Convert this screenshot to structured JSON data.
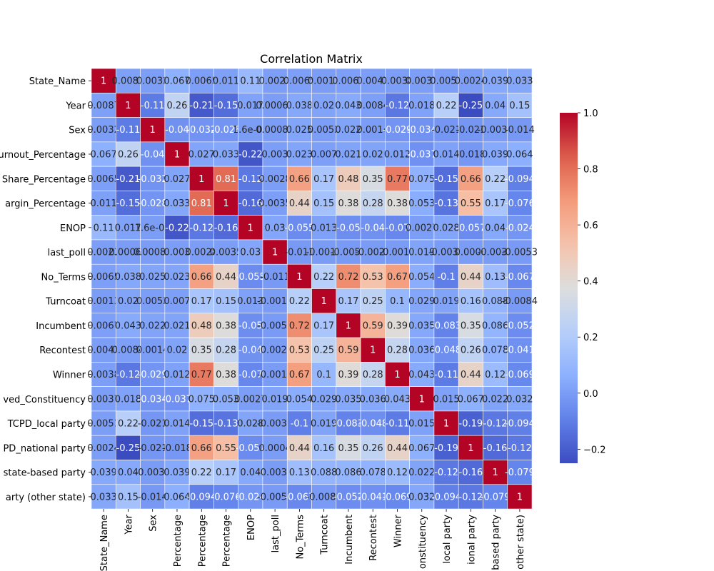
{
  "chart_data": {
    "type": "heatmap",
    "title": "Correlation Matrix",
    "row_labels": [
      "State_Name",
      "Year",
      "Sex",
      "urnout_Percentage",
      "Share_Percentage",
      "argin_Percentage",
      "ENOP",
      "last_poll",
      "No_Terms",
      "Turncoat",
      "Incumbent",
      "Recontest",
      "Winner",
      "ved_Constituency",
      "TCPD_local party",
      "PD_national party",
      "state-based party",
      "arty (other state)"
    ],
    "col_labels": [
      "State_Name",
      "Year",
      "Sex",
      "Percentage",
      "Percentage",
      "Percentage",
      "ENOP",
      "last_poll",
      "No_Terms",
      "Turncoat",
      "Incumbent",
      "Recontest",
      "Winner",
      "onstituency",
      "local party",
      "ional party",
      "based party",
      "other state)"
    ],
    "values": [
      [
        1,
        0.0087,
        0.0032,
        0.067,
        0.0065,
        0.011,
        0.11,
        0.0023,
        0.0065,
        0.0013,
        0.0067,
        0.0043,
        0.0038,
        0.0037,
        0.0051,
        0.0024,
        0.039,
        0.033
      ],
      [
        0.0087,
        1,
        -0.11,
        0.26,
        -0.21,
        -0.15,
        0.017,
        0.00064,
        0.038,
        0.02,
        0.043,
        0.0084,
        -0.12,
        0.018,
        0.22,
        -0.25,
        0.04,
        0.15
      ],
      [
        0.0032,
        -0.11,
        1,
        -0.04,
        -0.032,
        -0.028,
        1.6e-05,
        0.00086,
        0.025,
        0.0052,
        0.022,
        0.0014,
        -0.029,
        -0.034,
        -0.021,
        -0.021,
        -0.0032,
        -0.014
      ],
      [
        0.067,
        0.26,
        -0.04,
        1,
        0.027,
        0.033,
        -0.22,
        0.003,
        0.023,
        0.007,
        0.021,
        0.02,
        0.012,
        -0.037,
        0.014,
        -0.018,
        0.039,
        0.064
      ],
      [
        0.0065,
        -0.21,
        -0.032,
        0.027,
        1,
        0.81,
        -0.12,
        0.0028,
        0.66,
        0.17,
        0.48,
        0.35,
        0.77,
        0.075,
        -0.15,
        0.66,
        0.22,
        -0.094
      ],
      [
        0.011,
        -0.15,
        -0.028,
        0.033,
        0.81,
        1,
        -0.16,
        0.0035,
        0.44,
        0.15,
        0.38,
        0.28,
        0.38,
        0.053,
        -0.13,
        0.55,
        0.17,
        -0.076
      ],
      [
        0.11,
        0.017,
        1.6e-05,
        -0.22,
        -0.12,
        -0.16,
        1,
        0.03,
        -0.055,
        0.013,
        -0.05,
        -0.04,
        -0.07,
        0.0027,
        0.028,
        -0.057,
        0.04,
        -0.024
      ],
      [
        0.0023,
        0.00064,
        0.00086,
        0.003,
        0.0028,
        0.0035,
        0.03,
        1,
        -0.011,
        -0.0013,
        -0.0059,
        -0.0023,
        -0.0017,
        0.019,
        -0.0038,
        0.0004,
        -0.0037,
        -0.0053
      ],
      [
        0.0065,
        0.038,
        0.025,
        0.023,
        0.66,
        0.44,
        -0.055,
        -0.011,
        1,
        0.22,
        0.72,
        0.53,
        0.67,
        0.054,
        -0.1,
        0.44,
        0.13,
        -0.067
      ],
      [
        0.0013,
        0.02,
        0.0052,
        0.007,
        0.17,
        0.15,
        0.013,
        -0.0013,
        0.22,
        1,
        0.17,
        0.25,
        0.1,
        0.029,
        0.019,
        0.16,
        0.088,
        -0.0084
      ],
      [
        0.0067,
        0.043,
        0.022,
        0.021,
        0.48,
        0.38,
        -0.05,
        -0.0059,
        0.72,
        0.17,
        1,
        0.59,
        0.39,
        0.035,
        -0.083,
        0.35,
        0.086,
        -0.052
      ],
      [
        0.0043,
        0.0084,
        0.0014,
        0.02,
        0.35,
        0.28,
        -0.04,
        -0.0023,
        0.53,
        0.25,
        0.59,
        1,
        0.28,
        0.036,
        -0.048,
        0.26,
        0.078,
        -0.041
      ],
      [
        0.0038,
        -0.12,
        -0.029,
        0.012,
        0.77,
        0.38,
        -0.07,
        -0.0017,
        0.67,
        0.1,
        0.39,
        0.28,
        1,
        0.043,
        -0.11,
        0.44,
        0.12,
        -0.069
      ],
      [
        0.0037,
        0.018,
        -0.034,
        -0.037,
        0.075,
        0.053,
        0.0027,
        0.019,
        0.054,
        0.029,
        0.035,
        0.036,
        0.043,
        1,
        0.015,
        0.067,
        0.022,
        0.032
      ],
      [
        0.0051,
        0.22,
        -0.021,
        0.014,
        -0.15,
        -0.13,
        0.028,
        -0.0038,
        -0.1,
        0.019,
        -0.083,
        -0.048,
        -0.11,
        0.015,
        1,
        -0.19,
        -0.12,
        -0.094
      ],
      [
        0.0024,
        -0.25,
        -0.021,
        -0.018,
        0.66,
        0.55,
        -0.057,
        0.0004,
        0.44,
        0.16,
        0.35,
        0.26,
        0.44,
        0.067,
        -0.19,
        1,
        -0.16,
        -0.12
      ],
      [
        0.039,
        0.04,
        -0.0032,
        0.039,
        0.22,
        0.17,
        0.04,
        -0.0037,
        0.13,
        0.088,
        0.086,
        0.078,
        0.12,
        0.022,
        -0.12,
        -0.16,
        1,
        -0.079
      ],
      [
        0.033,
        0.15,
        -0.014,
        0.064,
        -0.094,
        -0.076,
        -0.024,
        -0.0053,
        -0.067,
        -0.0084,
        -0.052,
        -0.041,
        -0.069,
        0.032,
        -0.094,
        -0.12,
        -0.079,
        1
      ]
    ],
    "colormap": "coolwarm",
    "vmin": -0.25,
    "vmax": 1,
    "colorbar_ticks": [
      "−0.2",
      "0.0",
      "0.2",
      "0.4",
      "0.6",
      "0.8",
      "1.0"
    ],
    "colorbar_tick_values": [
      -0.2,
      0,
      0.2,
      0.4,
      0.6,
      0.8,
      1.0
    ],
    "colors": {
      "low": "#3b4cc0",
      "mid": "#dddddd",
      "high": "#b40426",
      "cell_border": "#ffffff",
      "text": "#000000"
    }
  }
}
